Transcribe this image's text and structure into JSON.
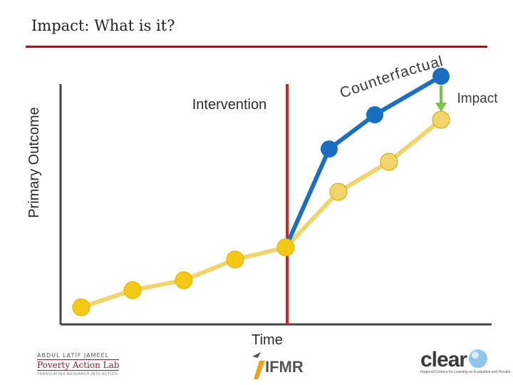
{
  "slide": {
    "title": "Impact: What is it?"
  },
  "diagram": {
    "y_axis_label": "Primary Outcome",
    "x_axis_label": "Time",
    "intervention_label": "Intervention",
    "counterfactual_label": "Counterfactual",
    "impact_label": "Impact"
  },
  "colors": {
    "title_rule": "#8c1d2a",
    "intervention_line": "#e02020",
    "counterfactual_line": "#f2d46a",
    "counterfactual_point": "#f5c814",
    "intervention_series": "#1a6fc0",
    "impact_arrow": "#7dc242",
    "axis": "#444444"
  },
  "logos": {
    "jpal_top": "ABDUL LATIF JAMEEL",
    "jpal_name": "Poverty Action Lab",
    "jpal_sub": "TRANSLATING RESEARCH INTO ACTION",
    "ifmr": "IFMR",
    "clear": "clear",
    "clear_sub": "Regional Centers for Learning on Evaluation and Results"
  }
}
